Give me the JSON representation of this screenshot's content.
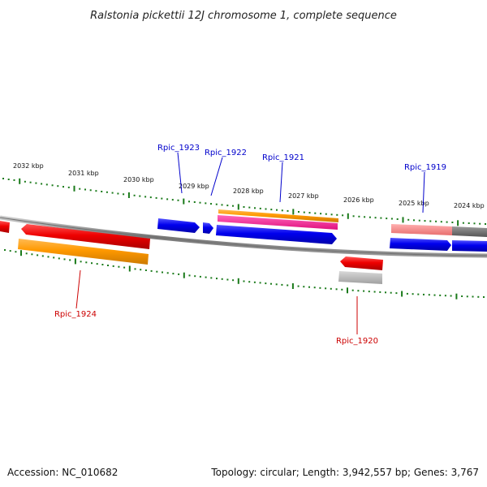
{
  "title": "Ralstonia pickettii 12J chromosome 1, complete sequence",
  "footer": {
    "accession": "Accession: NC_010682",
    "topology": "Topology: circular; Length: 3,942,557 bp; Genes: 3,767"
  },
  "ticks": [
    {
      "label": "2032 kbp"
    },
    {
      "label": "2031 kbp"
    },
    {
      "label": "2030 kbp"
    },
    {
      "label": "2029 kbp"
    },
    {
      "label": "2028 kbp"
    },
    {
      "label": "2027 kbp"
    },
    {
      "label": "2026 kbp"
    },
    {
      "label": "2025 kbp"
    },
    {
      "label": "2024 kbp"
    }
  ],
  "genes": [
    {
      "label": "Rpic_1923",
      "strand": "forward"
    },
    {
      "label": "Rpic_1922",
      "strand": "forward"
    },
    {
      "label": "Rpic_1921",
      "strand": "forward"
    },
    {
      "label": "Rpic_1919",
      "strand": "forward"
    },
    {
      "label": "Rpic_1924",
      "strand": "reverse"
    },
    {
      "label": "Rpic_1920",
      "strand": "reverse"
    }
  ],
  "colors": {
    "forward_cds": "#0000ee",
    "reverse_cds": "#ee0000",
    "gene_feature": "#ff9900",
    "misc_feature": "#ff1493",
    "backbone": "#888888",
    "tick": "#1a7a1a",
    "forward_label": "#0000cc",
    "reverse_label": "#cc0000"
  }
}
